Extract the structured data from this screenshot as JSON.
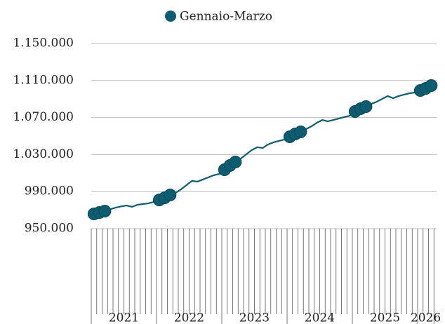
{
  "chart_data": {
    "type": "line",
    "legend": "top",
    "grid": true,
    "categories": [
      null,
      null,
      null,
      null,
      null,
      null,
      null,
      null,
      null,
      null,
      null,
      null,
      null,
      null,
      null,
      null,
      null,
      null,
      null,
      null,
      null,
      null,
      null,
      null,
      null,
      null,
      null,
      null,
      null,
      null,
      null,
      null,
      null,
      null,
      null,
      null,
      null,
      null,
      null,
      null,
      null,
      null,
      null,
      null,
      null,
      null,
      null,
      null,
      null,
      null,
      null,
      null,
      null,
      null,
      null,
      null,
      null,
      null,
      null,
      null,
      null,
      null,
      null
    ],
    "year_labels": [
      "2021",
      "2022",
      "2023",
      "2024",
      "2025",
      "2026"
    ],
    "ylim": [
      950000,
      1150000
    ],
    "yticks": [
      {
        "value": 950000,
        "label": "950.000"
      },
      {
        "value": 990000,
        "label": "990.000"
      },
      {
        "value": 1030000,
        "label": "1.030.000"
      },
      {
        "value": 1070000,
        "label": "1.070.000"
      },
      {
        "value": 1110000,
        "label": "1.110.000"
      },
      {
        "value": 1150000,
        "label": "1.150.000"
      }
    ],
    "series": [
      {
        "color": "#0e5c70",
        "values": [
          965900,
          967400,
          968900,
          971000,
          972700,
          974000,
          975000,
          973500,
          975800,
          976500,
          977300,
          978800,
          981000,
          983300,
          986400,
          988600,
          992400,
          997000,
          1001500,
          1000800,
          1003000,
          1005300,
          1007600,
          1009000,
          1013600,
          1018200,
          1022000,
          1025800,
          1030300,
          1034800,
          1037900,
          1037100,
          1040900,
          1043200,
          1044700,
          1046200,
          1049200,
          1052300,
          1054500,
          1057600,
          1060600,
          1064400,
          1067400,
          1065900,
          1067400,
          1068900,
          1070500,
          1071900,
          1076500,
          1079500,
          1081800,
          1084800,
          1087100,
          1090200,
          1093200,
          1090900,
          1093200,
          1094700,
          1096200,
          1097000,
          1099200,
          1101500,
          1104500
        ]
      },
      {
        "name": "Gennaio-Marzo",
        "color": "#0e5c70",
        "marker": "circle",
        "values": [
          965900,
          967400,
          968900,
          null,
          null,
          null,
          null,
          null,
          null,
          null,
          null,
          null,
          981000,
          983300,
          986400,
          null,
          null,
          null,
          null,
          null,
          null,
          null,
          null,
          null,
          1013600,
          1018200,
          1022000,
          null,
          null,
          null,
          null,
          null,
          null,
          null,
          null,
          null,
          1049200,
          1052300,
          1054500,
          null,
          null,
          null,
          null,
          null,
          null,
          null,
          null,
          null,
          1076500,
          1079500,
          1081800,
          null,
          null,
          null,
          null,
          null,
          null,
          null,
          null,
          null,
          1099200,
          1101500,
          1104500
        ]
      }
    ]
  }
}
